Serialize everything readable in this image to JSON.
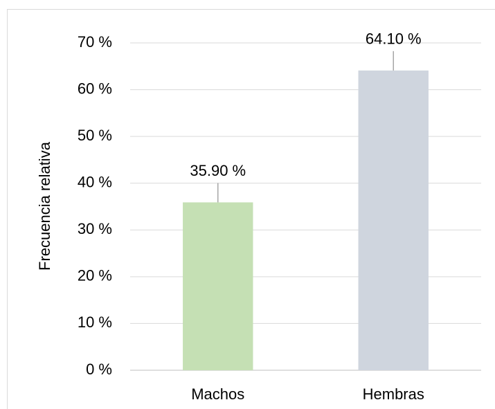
{
  "chart_data": {
    "type": "bar",
    "y_label": "Frecuencia relativa",
    "categories": [
      "Machos",
      "Hembras"
    ],
    "values": [
      35.9,
      64.1
    ],
    "value_labels": [
      "35.90 %",
      "64.10 %"
    ],
    "colors": [
      "#c5e0b4",
      "#cfd5de"
    ],
    "ylim": [
      0,
      70
    ],
    "yticks": [
      {
        "value": 0,
        "label": "0 %"
      },
      {
        "value": 10,
        "label": "10 %"
      },
      {
        "value": 20,
        "label": "20 %"
      },
      {
        "value": 30,
        "label": "30 %"
      },
      {
        "value": 40,
        "label": "40 %"
      },
      {
        "value": 50,
        "label": "50 %"
      },
      {
        "value": 60,
        "label": "60 %"
      },
      {
        "value": 70,
        "label": "70 %"
      }
    ],
    "grid": true
  }
}
